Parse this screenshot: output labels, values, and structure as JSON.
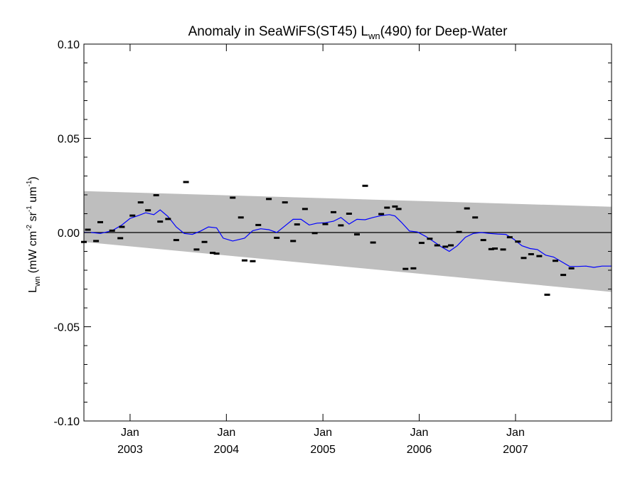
{
  "chart_data": {
    "type": "line",
    "title": {
      "prefix": "Anomaly in SeaWiFS(ST45) L",
      "subscript": "wn",
      "suffix": "(490) for Deep-Water"
    },
    "ylabel": {
      "main": "L",
      "sub1": "wn",
      "unit_a": " (mW cm",
      "sup1": "-2",
      "unit_b": " sr",
      "sup2": "-1",
      "unit_c": " um",
      "sup3": "-1",
      "unit_d": ")"
    },
    "xlim": [
      "2002-07-10",
      "2007-12-31"
    ],
    "ylim": [
      -0.1,
      0.1
    ],
    "y_ticks": [
      {
        "value": 0.1,
        "label": "0.10"
      },
      {
        "value": 0.05,
        "label": "0.05"
      },
      {
        "value": 0.0,
        "label": "0.00"
      },
      {
        "value": -0.05,
        "label": "-0.05"
      },
      {
        "value": -0.1,
        "label": "-0.10"
      }
    ],
    "x_ticks": [
      {
        "date": "2003-01-01",
        "month": "Jan",
        "year": "2003"
      },
      {
        "date": "2004-01-01",
        "month": "Jan",
        "year": "2004"
      },
      {
        "date": "2005-01-01",
        "month": "Jan",
        "year": "2005"
      },
      {
        "date": "2006-01-01",
        "month": "Jan",
        "year": "2006"
      },
      {
        "date": "2007-01-01",
        "month": "Jan",
        "year": "2007"
      }
    ],
    "zero_line": 0.0,
    "band": {
      "x": [
        "2002-07-10",
        "2007-12-31"
      ],
      "upper": [
        0.022,
        0.0137
      ],
      "lower": [
        -0.005,
        -0.0315
      ],
      "color": "#bebebe"
    },
    "series": [
      {
        "style": "markers",
        "color": "#000000",
        "points": [
          [
            "2002-07-10",
            -0.005
          ],
          [
            "2002-07-25",
            0.0015
          ],
          [
            "2002-08-25",
            -0.0045
          ],
          [
            "2002-09-10",
            0.0055
          ],
          [
            "2002-10-25",
            0.001
          ],
          [
            "2002-11-25",
            -0.003
          ],
          [
            "2002-12-01",
            0.003
          ],
          [
            "2003-01-10",
            0.009
          ],
          [
            "2003-02-10",
            0.016
          ],
          [
            "2003-03-10",
            0.0118
          ],
          [
            "2003-04-10",
            0.0198
          ],
          [
            "2003-04-25",
            0.0058
          ],
          [
            "2003-05-25",
            0.0072
          ],
          [
            "2003-06-25",
            -0.004
          ],
          [
            "2003-08-01",
            0.0268
          ],
          [
            "2003-09-10",
            -0.009
          ],
          [
            "2003-10-10",
            -0.005
          ],
          [
            "2003-11-10",
            -0.0108
          ],
          [
            "2003-11-25",
            -0.0112
          ],
          [
            "2004-01-25",
            0.0185
          ],
          [
            "2004-02-25",
            0.008
          ],
          [
            "2004-03-10",
            -0.0148
          ],
          [
            "2004-04-10",
            -0.0152
          ],
          [
            "2004-05-01",
            0.004
          ],
          [
            "2004-06-10",
            0.0178
          ],
          [
            "2004-07-10",
            -0.0028
          ],
          [
            "2004-08-10",
            0.016
          ],
          [
            "2004-09-10",
            -0.0045
          ],
          [
            "2004-09-25",
            0.0043
          ],
          [
            "2004-10-25",
            0.0125
          ],
          [
            "2004-12-01",
            -0.0003
          ],
          [
            "2005-01-10",
            0.0045
          ],
          [
            "2005-02-10",
            0.0108
          ],
          [
            "2005-03-10",
            0.0038
          ],
          [
            "2005-04-10",
            0.01
          ],
          [
            "2005-05-10",
            -0.001
          ],
          [
            "2005-06-10",
            0.0248
          ],
          [
            "2005-07-10",
            -0.0053
          ],
          [
            "2005-08-10",
            0.0098
          ],
          [
            "2005-09-01",
            0.0132
          ],
          [
            "2005-10-01",
            0.0138
          ],
          [
            "2005-10-15",
            0.0125
          ],
          [
            "2005-11-10",
            -0.0193
          ],
          [
            "2005-12-10",
            -0.019
          ],
          [
            "2006-01-10",
            -0.0055
          ],
          [
            "2006-02-10",
            -0.0033
          ],
          [
            "2006-03-10",
            -0.0068
          ],
          [
            "2006-04-10",
            -0.0075
          ],
          [
            "2006-05-01",
            -0.0068
          ],
          [
            "2006-06-01",
            0.0003
          ],
          [
            "2006-07-01",
            0.0128
          ],
          [
            "2006-08-01",
            0.008
          ],
          [
            "2006-09-01",
            -0.004
          ],
          [
            "2006-10-01",
            -0.0088
          ],
          [
            "2006-10-15",
            -0.0085
          ],
          [
            "2006-11-15",
            -0.009
          ],
          [
            "2006-12-10",
            -0.0025
          ],
          [
            "2007-01-10",
            -0.0048
          ],
          [
            "2007-02-01",
            -0.0135
          ],
          [
            "2007-03-01",
            -0.0115
          ],
          [
            "2007-04-01",
            -0.0125
          ],
          [
            "2007-05-01",
            -0.033
          ],
          [
            "2007-06-01",
            -0.015
          ],
          [
            "2007-07-01",
            -0.0225
          ],
          [
            "2007-08-01",
            -0.019
          ]
        ]
      },
      {
        "style": "line",
        "color": "#0000ff",
        "points": [
          [
            "2002-07-10",
            0.0001
          ],
          [
            "2002-08-10",
            0.0
          ],
          [
            "2002-09-10",
            -0.0005
          ],
          [
            "2002-10-25",
            0.001
          ],
          [
            "2002-12-01",
            0.004
          ],
          [
            "2003-01-01",
            0.0075
          ],
          [
            "2003-02-01",
            0.009
          ],
          [
            "2003-03-01",
            0.0105
          ],
          [
            "2003-04-01",
            0.0095
          ],
          [
            "2003-04-25",
            0.012
          ],
          [
            "2003-05-25",
            0.0085
          ],
          [
            "2003-06-25",
            0.003
          ],
          [
            "2003-07-25",
            -0.0005
          ],
          [
            "2003-08-25",
            -0.001
          ],
          [
            "2003-09-25",
            0.0008
          ],
          [
            "2003-10-25",
            0.003
          ],
          [
            "2003-11-25",
            0.0025
          ],
          [
            "2003-12-20",
            -0.003
          ],
          [
            "2004-01-25",
            -0.0045
          ],
          [
            "2004-03-10",
            -0.003
          ],
          [
            "2004-04-10",
            0.001
          ],
          [
            "2004-05-10",
            0.002
          ],
          [
            "2004-06-10",
            0.0015
          ],
          [
            "2004-07-10",
            0.0
          ],
          [
            "2004-08-10",
            0.0035
          ],
          [
            "2004-09-10",
            0.007
          ],
          [
            "2004-10-10",
            0.007
          ],
          [
            "2004-11-10",
            0.004
          ],
          [
            "2004-12-10",
            0.005
          ],
          [
            "2005-01-10",
            0.0052
          ],
          [
            "2005-02-10",
            0.006
          ],
          [
            "2005-03-10",
            0.008
          ],
          [
            "2005-04-10",
            0.0045
          ],
          [
            "2005-05-10",
            0.007
          ],
          [
            "2005-06-10",
            0.0068
          ],
          [
            "2005-07-10",
            0.008
          ],
          [
            "2005-08-10",
            0.009
          ],
          [
            "2005-09-10",
            0.0095
          ],
          [
            "2005-10-01",
            0.0088
          ],
          [
            "2005-10-25",
            0.0055
          ],
          [
            "2005-11-25",
            0.0008
          ],
          [
            "2005-12-25",
            0.0003
          ],
          [
            "2006-01-25",
            -0.002
          ],
          [
            "2006-02-25",
            -0.0048
          ],
          [
            "2006-03-25",
            -0.0075
          ],
          [
            "2006-04-25",
            -0.01
          ],
          [
            "2006-05-25",
            -0.007
          ],
          [
            "2006-06-25",
            -0.0025
          ],
          [
            "2006-07-25",
            -0.0005
          ],
          [
            "2006-08-25",
            0.0
          ],
          [
            "2006-09-25",
            -0.0005
          ],
          [
            "2006-10-25",
            -0.0008
          ],
          [
            "2006-11-25",
            -0.001
          ],
          [
            "2006-12-25",
            -0.0035
          ],
          [
            "2007-01-25",
            -0.007
          ],
          [
            "2007-02-25",
            -0.0085
          ],
          [
            "2007-03-25",
            -0.009
          ],
          [
            "2007-04-25",
            -0.012
          ],
          [
            "2007-05-25",
            -0.013
          ],
          [
            "2007-06-25",
            -0.0155
          ],
          [
            "2007-07-25",
            -0.018
          ],
          [
            "2007-08-25",
            -0.018
          ],
          [
            "2007-09-25",
            -0.0178
          ],
          [
            "2007-10-25",
            -0.0185
          ],
          [
            "2007-11-25",
            -0.0178
          ],
          [
            "2007-12-31",
            -0.0178
          ]
        ]
      }
    ]
  }
}
